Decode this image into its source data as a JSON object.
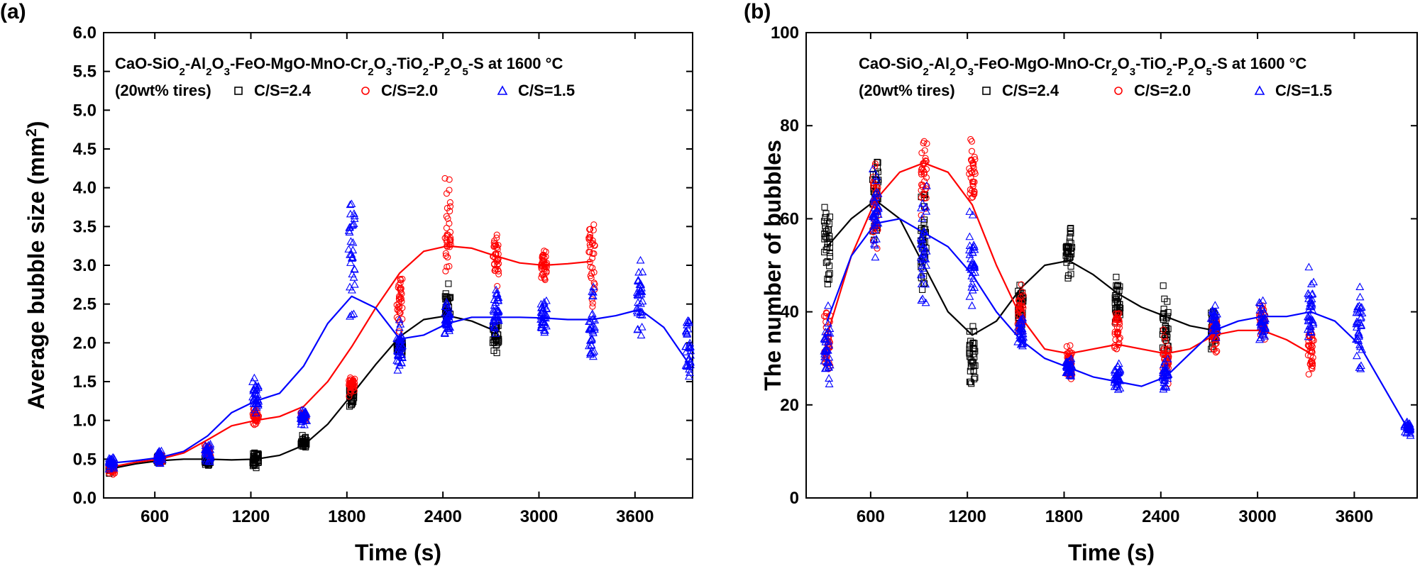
{
  "chart_data": [
    {
      "panel": "(a)",
      "type": "scatter",
      "title": "",
      "xlabel": "Time (s)",
      "ylabel": "Average bubble size (mm²)",
      "xlim": [
        280,
        3960
      ],
      "ylim": [
        0,
        6.0
      ],
      "xticks": [
        600,
        1200,
        1800,
        2400,
        3000,
        3600
      ],
      "yticks": [
        0.0,
        0.5,
        1.0,
        1.5,
        2.0,
        2.5,
        3.0,
        3.5,
        4.0,
        4.5,
        5.0,
        5.5,
        6.0
      ],
      "ytick_decimals": 1,
      "grid": false,
      "legend": {
        "placement": "top-left",
        "line1": "CaO-SiO₂-Al₂O₃-FeO-MgO-MnO-Cr₂O₃-TiO₂-P₂O₅-S at 1600 °C",
        "line2_prefix": "(20wt% tires)"
      },
      "series": [
        {
          "name": "C/S=2.4",
          "color": "#000000",
          "marker": "square",
          "x": [
            330,
            630,
            930,
            1230,
            1530,
            1830,
            2130,
            2430,
            2730
          ],
          "center": [
            0.38,
            0.5,
            0.47,
            0.5,
            0.7,
            1.32,
            1.95,
            2.48,
            2.1
          ],
          "spread": [
            0.07,
            0.07,
            0.08,
            0.17,
            0.12,
            0.22,
            0.12,
            0.3,
            0.27
          ],
          "fit_x": [
            330,
            480,
            630,
            780,
            930,
            1080,
            1230,
            1380,
            1530,
            1680,
            1830,
            1980,
            2130,
            2280,
            2430,
            2580,
            2730
          ],
          "fit_y": [
            0.38,
            0.44,
            0.48,
            0.5,
            0.5,
            0.49,
            0.5,
            0.55,
            0.68,
            0.95,
            1.33,
            1.72,
            2.08,
            2.3,
            2.35,
            2.28,
            2.15
          ]
        },
        {
          "name": "C/S=2.0",
          "color": "#ff0000",
          "marker": "circle",
          "x": [
            330,
            630,
            930,
            1230,
            1530,
            1830,
            2130,
            2430,
            2730,
            3030,
            3330
          ],
          "center": [
            0.37,
            0.5,
            0.6,
            1.05,
            1.05,
            1.45,
            2.5,
            3.45,
            3.12,
            2.98,
            3.1
          ],
          "spread": [
            0.1,
            0.08,
            0.12,
            0.15,
            0.08,
            0.18,
            0.5,
            0.85,
            0.45,
            0.3,
            0.7
          ],
          "fit_x": [
            330,
            480,
            630,
            780,
            930,
            1080,
            1230,
            1380,
            1530,
            1680,
            1830,
            1980,
            2130,
            2280,
            2430,
            2580,
            2730,
            2880,
            3030,
            3180,
            3330
          ],
          "fit_y": [
            0.4,
            0.46,
            0.5,
            0.58,
            0.75,
            0.93,
            1.0,
            1.05,
            1.18,
            1.5,
            1.95,
            2.45,
            2.9,
            3.18,
            3.25,
            3.22,
            3.12,
            3.03,
            3.0,
            3.02,
            3.05
          ]
        },
        {
          "name": "C/S=1.5",
          "color": "#0000ff",
          "marker": "triangle",
          "x": [
            330,
            630,
            930,
            1230,
            1530,
            1830,
            2130,
            2430,
            2730,
            3030,
            3330,
            3630,
            3930
          ],
          "center": [
            0.45,
            0.52,
            0.6,
            1.3,
            1.05,
            3.2,
            1.95,
            2.3,
            2.35,
            2.35,
            2.25,
            2.6,
            1.95
          ],
          "spread": [
            0.12,
            0.12,
            0.15,
            0.3,
            0.12,
            1.1,
            0.38,
            0.35,
            0.38,
            0.3,
            0.7,
            0.7,
            0.5
          ],
          "fit_x": [
            330,
            480,
            630,
            780,
            930,
            1080,
            1230,
            1380,
            1530,
            1680,
            1830,
            1980,
            2130,
            2280,
            2430,
            2580,
            2730,
            2880,
            3030,
            3180,
            3330,
            3480,
            3630,
            3780,
            3930
          ],
          "fit_y": [
            0.45,
            0.48,
            0.52,
            0.6,
            0.8,
            1.1,
            1.25,
            1.35,
            1.7,
            2.25,
            2.6,
            2.45,
            2.05,
            2.1,
            2.25,
            2.33,
            2.33,
            2.33,
            2.32,
            2.3,
            2.3,
            2.35,
            2.43,
            2.2,
            1.75
          ]
        }
      ]
    },
    {
      "panel": "(b)",
      "type": "scatter",
      "title": "",
      "xlabel": "Time (s)",
      "ylabel": "The number of bubbles",
      "xlim": [
        200,
        3990
      ],
      "ylim": [
        0,
        100
      ],
      "xticks": [
        600,
        1200,
        1800,
        2400,
        3000,
        3600
      ],
      "yticks": [
        0,
        20,
        40,
        60,
        80,
        100
      ],
      "ytick_decimals": 0,
      "grid": false,
      "legend": {
        "placement": "top-left",
        "line1": "CaO-SiO₂-Al₂O₃-FeO-MgO-MnO-Cr₂O₃-TiO₂-P₂O₅-S at 1600 °C",
        "line2_prefix": "(20wt% tires)"
      },
      "series": [
        {
          "name": "C/S=2.4",
          "color": "#000000",
          "marker": "square",
          "x": [
            330,
            630,
            930,
            1230,
            1530,
            1830,
            2130,
            2430,
            2730
          ],
          "center": [
            55,
            64,
            55,
            30,
            42,
            53,
            42,
            38,
            36
          ],
          "spread": [
            12,
            14,
            14,
            9,
            6,
            8,
            8,
            11,
            6
          ],
          "fit_x": [
            330,
            480,
            630,
            780,
            930,
            1080,
            1230,
            1380,
            1530,
            1680,
            1830,
            1980,
            2130,
            2280,
            2430,
            2580,
            2730
          ],
          "fit_y": [
            54,
            60,
            64,
            60,
            50,
            40,
            35,
            38,
            45,
            50,
            51,
            48,
            44,
            41,
            39,
            37,
            36
          ]
        },
        {
          "name": "C/S=2.0",
          "color": "#ff0000",
          "marker": "circle",
          "x": [
            330,
            630,
            930,
            1230,
            1530,
            1830,
            2130,
            2430,
            2730,
            3030,
            3330
          ],
          "center": [
            33,
            62,
            70,
            70,
            40,
            29,
            36,
            30,
            35,
            38,
            31
          ],
          "spread": [
            12,
            14,
            12,
            9,
            7,
            6,
            8,
            8,
            6,
            6,
            7
          ],
          "fit_x": [
            330,
            480,
            630,
            780,
            930,
            1080,
            1230,
            1380,
            1530,
            1680,
            1830,
            1980,
            2130,
            2280,
            2430,
            2580,
            2730,
            2880,
            3030,
            3180,
            3330
          ],
          "fit_y": [
            35,
            52,
            64,
            70,
            72,
            70,
            63,
            50,
            39,
            32,
            31,
            32,
            33,
            32,
            31,
            32,
            35,
            36,
            36,
            34,
            31
          ]
        },
        {
          "name": "C/S=1.5",
          "color": "#0000ff",
          "marker": "triangle",
          "x": [
            330,
            630,
            930,
            1230,
            1530,
            1830,
            2130,
            2430,
            2730,
            3030,
            3330,
            3630,
            3930
          ],
          "center": [
            32,
            62,
            54,
            52,
            36,
            28,
            26,
            26,
            38,
            38,
            41,
            37,
            15
          ],
          "spread": [
            10,
            14,
            16,
            12,
            5,
            3,
            4,
            5,
            6,
            6,
            13,
            13,
            2
          ],
          "fit_x": [
            330,
            480,
            630,
            780,
            930,
            1080,
            1230,
            1380,
            1530,
            1680,
            1830,
            1980,
            2130,
            2280,
            2430,
            2580,
            2730,
            2880,
            3030,
            3180,
            3330,
            3480,
            3630,
            3780,
            3930
          ],
          "fit_y": [
            38,
            52,
            59,
            60,
            57,
            54,
            48,
            40,
            34,
            30,
            28,
            26,
            25,
            24,
            26,
            31,
            36,
            38,
            39,
            39,
            40,
            38,
            33,
            24,
            15
          ]
        }
      ]
    }
  ]
}
